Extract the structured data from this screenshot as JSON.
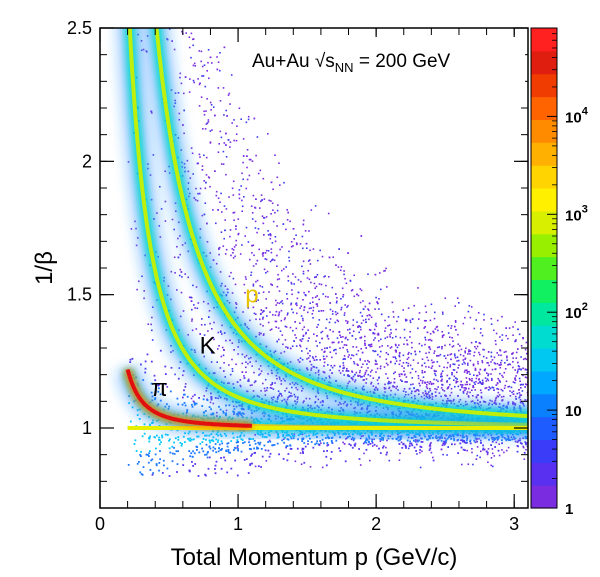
{
  "chart_data": {
    "type": "heatmap",
    "xlabel": "Total Momentum p (GeV/c)",
    "ylabel": "1/β",
    "xlim": [
      0,
      3.1
    ],
    "ylim": [
      0.7,
      2.5
    ],
    "x_ticks": [
      {
        "value": 0,
        "label": "0"
      },
      {
        "value": 1,
        "label": "1"
      },
      {
        "value": 2,
        "label": "2"
      },
      {
        "value": 3,
        "label": "3"
      }
    ],
    "y_ticks": [
      {
        "value": 1,
        "label": "1"
      },
      {
        "value": 1.5,
        "label": "1.5"
      },
      {
        "value": 2,
        "label": "2"
      },
      {
        "value": 2.5,
        "label": "2.5"
      }
    ],
    "annotation": {
      "prefix": "Au+Au ",
      "sqrt": "√",
      "s": "s",
      "sub": "NN",
      "suffix": " = 200 GeV"
    },
    "colorbar": {
      "scale": "log",
      "range": [
        1,
        80000
      ],
      "ticks": [
        {
          "value": 1,
          "base": "1",
          "exp": ""
        },
        {
          "value": 10,
          "base": "10",
          "exp": ""
        },
        {
          "value": 100,
          "base": "10",
          "exp": "2"
        },
        {
          "value": 1000,
          "base": "10",
          "exp": "3"
        },
        {
          "value": 10000,
          "base": "10",
          "exp": "4"
        }
      ]
    },
    "bands": [
      {
        "name": "π",
        "mass": 0.1396,
        "label_x": 0.43,
        "label_y": 1.12,
        "color": "#000000"
      },
      {
        "name": "K",
        "mass": 0.4937,
        "label_x": 0.78,
        "label_y": 1.28,
        "color": "#000000"
      },
      {
        "name": "p",
        "mass": 0.9383,
        "label_x": 1.1,
        "label_y": 1.47,
        "color": "#e6c200"
      }
    ],
    "p_min": 0.2
  }
}
